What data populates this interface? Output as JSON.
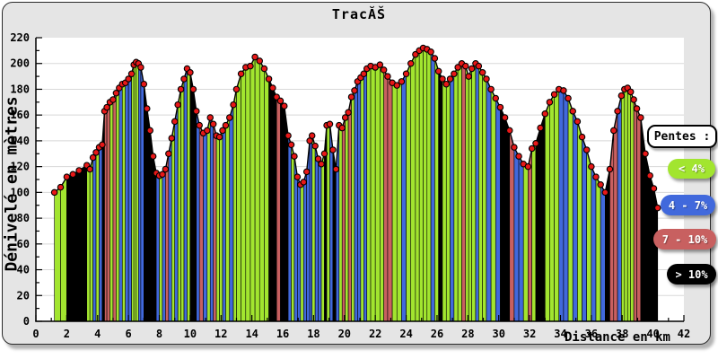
{
  "chart_data": {
    "type": "area",
    "title": "TracĂŠ",
    "xlabel": "Distance en km",
    "ylabel": "Dénivelé en mètres",
    "xlim": [
      0,
      42
    ],
    "ylim": [
      0,
      220
    ],
    "x_major_tick": 2,
    "x_minor_tick": 1,
    "y_major_tick": 20,
    "y_minor_tick": 10,
    "grid": "horizontal",
    "plot_bg": "#ffffff",
    "grid_color": "#d8d8d8",
    "outline_color": "#000000",
    "marker": {
      "color": "#e81818",
      "outline": "#000000",
      "radius": 3.2
    },
    "colors": {
      "g": "#A2E52F",
      "b": "#4169DC",
      "r": "#C86060",
      "k": "#000000"
    },
    "legend": {
      "title": "Pentes :",
      "position": "right",
      "items": [
        {
          "label": "< 4%",
          "color": "#A2E52F",
          "slope_class": "g"
        },
        {
          "label": "4 - 7%",
          "color": "#4169DC",
          "slope_class": "b"
        },
        {
          "label": "7 - 10%",
          "color": "#C86060",
          "slope_class": "r"
        },
        {
          "label": "> 10%",
          "color": "#000000",
          "slope_class": "k"
        }
      ]
    },
    "point_format": [
      "distance_km",
      "elevation_m",
      "slope_class_of_preceding_segment"
    ],
    "points": [
      [
        1.2,
        100,
        ""
      ],
      [
        1.6,
        104,
        "g"
      ],
      [
        2.0,
        112,
        "g"
      ],
      [
        2.4,
        114,
        "k"
      ],
      [
        2.8,
        117,
        "k"
      ],
      [
        3.3,
        121,
        "k"
      ],
      [
        3.5,
        118,
        "g"
      ],
      [
        3.7,
        127,
        "g"
      ],
      [
        3.9,
        131,
        "b"
      ],
      [
        4.1,
        135,
        "g"
      ],
      [
        4.3,
        137,
        "b"
      ],
      [
        4.45,
        163,
        "k"
      ],
      [
        4.6,
        166,
        "r"
      ],
      [
        4.8,
        170,
        "r"
      ],
      [
        5.0,
        172,
        "g"
      ],
      [
        5.2,
        177,
        "r"
      ],
      [
        5.4,
        181,
        "g"
      ],
      [
        5.6,
        184,
        "b"
      ],
      [
        5.8,
        185,
        "g"
      ],
      [
        6.0,
        188,
        "b"
      ],
      [
        6.2,
        192,
        "b"
      ],
      [
        6.35,
        199,
        "g"
      ],
      [
        6.5,
        201,
        "g"
      ],
      [
        6.65,
        200,
        "g"
      ],
      [
        6.8,
        197,
        "b"
      ],
      [
        7.0,
        184,
        "b"
      ],
      [
        7.2,
        165,
        "k"
      ],
      [
        7.4,
        148,
        "k"
      ],
      [
        7.6,
        128,
        "k"
      ],
      [
        7.8,
        115,
        "k"
      ],
      [
        8.0,
        113,
        "b"
      ],
      [
        8.2,
        114,
        "g"
      ],
      [
        8.4,
        118,
        "b"
      ],
      [
        8.6,
        130,
        "r"
      ],
      [
        8.8,
        142,
        "b"
      ],
      [
        9.0,
        155,
        "g"
      ],
      [
        9.2,
        168,
        "b"
      ],
      [
        9.4,
        180,
        "g"
      ],
      [
        9.6,
        188,
        "g"
      ],
      [
        9.8,
        196,
        "b"
      ],
      [
        10.0,
        193,
        "g"
      ],
      [
        10.2,
        180,
        "k"
      ],
      [
        10.4,
        163,
        "k"
      ],
      [
        10.6,
        152,
        "b"
      ],
      [
        10.85,
        146,
        "r"
      ],
      [
        11.1,
        148,
        "b"
      ],
      [
        11.3,
        158,
        "g"
      ],
      [
        11.5,
        153,
        "b"
      ],
      [
        11.7,
        144,
        "r"
      ],
      [
        11.9,
        143,
        "g"
      ],
      [
        12.1,
        148,
        "g"
      ],
      [
        12.3,
        152,
        "b"
      ],
      [
        12.55,
        158,
        "g"
      ],
      [
        12.8,
        168,
        "b"
      ],
      [
        13.0,
        180,
        "g"
      ],
      [
        13.3,
        192,
        "g"
      ],
      [
        13.6,
        197,
        "g"
      ],
      [
        13.9,
        198,
        "g"
      ],
      [
        14.2,
        205,
        "g"
      ],
      [
        14.5,
        202,
        "g"
      ],
      [
        14.8,
        196,
        "g"
      ],
      [
        15.1,
        188,
        "g"
      ],
      [
        15.35,
        181,
        "k"
      ],
      [
        15.6,
        174,
        "k"
      ],
      [
        15.85,
        171,
        "r"
      ],
      [
        16.1,
        167,
        "k"
      ],
      [
        16.35,
        144,
        "k"
      ],
      [
        16.55,
        137,
        "b"
      ],
      [
        16.75,
        128,
        "g"
      ],
      [
        16.95,
        112,
        "b"
      ],
      [
        17.15,
        106,
        "b"
      ],
      [
        17.35,
        108,
        "g"
      ],
      [
        17.55,
        116,
        "b"
      ],
      [
        17.75,
        140,
        "b"
      ],
      [
        17.9,
        144,
        "b"
      ],
      [
        18.1,
        136,
        "g"
      ],
      [
        18.3,
        126,
        "b"
      ],
      [
        18.5,
        122,
        "b"
      ],
      [
        18.7,
        130,
        "g"
      ],
      [
        18.85,
        152,
        "k"
      ],
      [
        19.05,
        153,
        "g"
      ],
      [
        19.25,
        133,
        "b"
      ],
      [
        19.45,
        118,
        "k"
      ],
      [
        19.65,
        152,
        "b"
      ],
      [
        19.85,
        150,
        "g"
      ],
      [
        20.05,
        158,
        "r"
      ],
      [
        20.25,
        162,
        "g"
      ],
      [
        20.45,
        174,
        "r"
      ],
      [
        20.65,
        179,
        "g"
      ],
      [
        20.85,
        186,
        "b"
      ],
      [
        21.05,
        189,
        "b"
      ],
      [
        21.25,
        192,
        "g"
      ],
      [
        21.45,
        196,
        "b"
      ],
      [
        21.7,
        198,
        "g"
      ],
      [
        22.0,
        197,
        "g"
      ],
      [
        22.3,
        199,
        "g"
      ],
      [
        22.55,
        195,
        "g"
      ],
      [
        22.8,
        190,
        "r"
      ],
      [
        23.1,
        185,
        "r"
      ],
      [
        23.4,
        183,
        "g"
      ],
      [
        23.7,
        186,
        "g"
      ],
      [
        24.0,
        192,
        "b"
      ],
      [
        24.3,
        200,
        "g"
      ],
      [
        24.6,
        207,
        "g"
      ],
      [
        24.85,
        210,
        "g"
      ],
      [
        25.1,
        212,
        "g"
      ],
      [
        25.35,
        211,
        "g"
      ],
      [
        25.6,
        209,
        "g"
      ],
      [
        25.85,
        204,
        "b"
      ],
      [
        26.1,
        194,
        "g"
      ],
      [
        26.35,
        188,
        "k"
      ],
      [
        26.6,
        184,
        "g"
      ],
      [
        26.85,
        188,
        "g"
      ],
      [
        27.1,
        192,
        "b"
      ],
      [
        27.35,
        197,
        "g"
      ],
      [
        27.6,
        200,
        "g"
      ],
      [
        27.85,
        198,
        "r"
      ],
      [
        28.05,
        190,
        "g"
      ],
      [
        28.25,
        196,
        "g"
      ],
      [
        28.5,
        200,
        "g"
      ],
      [
        28.7,
        198,
        "b"
      ],
      [
        28.95,
        193,
        "g"
      ],
      [
        29.2,
        188,
        "g"
      ],
      [
        29.5,
        180,
        "b"
      ],
      [
        29.8,
        173,
        "g"
      ],
      [
        30.1,
        166,
        "b"
      ],
      [
        30.4,
        158,
        "k"
      ],
      [
        30.7,
        148,
        "k"
      ],
      [
        31.0,
        135,
        "r"
      ],
      [
        31.3,
        128,
        "b"
      ],
      [
        31.6,
        122,
        "b"
      ],
      [
        31.9,
        120,
        "g"
      ],
      [
        32.15,
        134,
        "r"
      ],
      [
        32.4,
        138,
        "g"
      ],
      [
        32.7,
        150,
        "k"
      ],
      [
        33.0,
        161,
        "k"
      ],
      [
        33.3,
        170,
        "g"
      ],
      [
        33.6,
        176,
        "g"
      ],
      [
        33.9,
        180,
        "g"
      ],
      [
        34.2,
        179,
        "b"
      ],
      [
        34.5,
        173,
        "b"
      ],
      [
        34.8,
        163,
        "g"
      ],
      [
        35.1,
        155,
        "b"
      ],
      [
        35.4,
        143,
        "g"
      ],
      [
        35.7,
        133,
        "b"
      ],
      [
        36.0,
        120,
        "g"
      ],
      [
        36.3,
        112,
        "b"
      ],
      [
        36.6,
        106,
        "g"
      ],
      [
        36.9,
        100,
        "b"
      ],
      [
        37.2,
        118,
        "k"
      ],
      [
        37.45,
        148,
        "r"
      ],
      [
        37.7,
        163,
        "r"
      ],
      [
        37.95,
        175,
        "b"
      ],
      [
        38.15,
        180,
        "g"
      ],
      [
        38.35,
        181,
        "g"
      ],
      [
        38.55,
        178,
        "g"
      ],
      [
        38.75,
        172,
        "g"
      ],
      [
        38.95,
        165,
        "r"
      ],
      [
        39.2,
        158,
        "r"
      ],
      [
        39.5,
        130,
        "k"
      ],
      [
        39.8,
        113,
        "k"
      ],
      [
        40.05,
        103,
        "k"
      ],
      [
        40.3,
        88,
        "k"
      ]
    ]
  }
}
